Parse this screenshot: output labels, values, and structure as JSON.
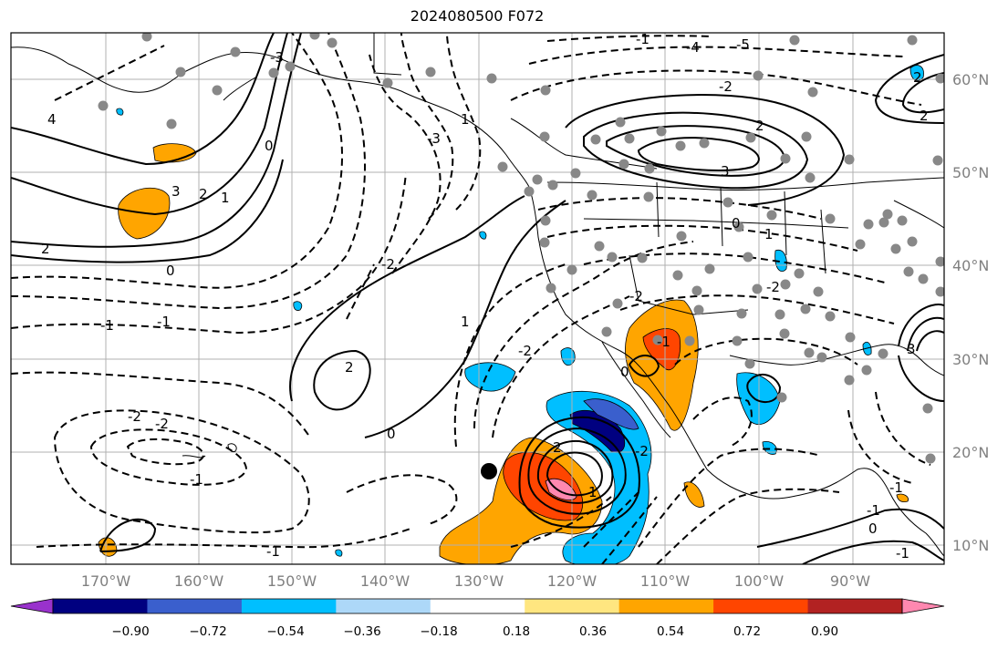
{
  "title": "2024080500 F072",
  "lon_labels": [
    "170°W",
    "160°W",
    "150°W",
    "140°W",
    "130°W",
    "120°W",
    "110°W",
    "100°W",
    "90°W"
  ],
  "lat_labels": [
    "60°N",
    "50°N",
    "40°N",
    "30°N",
    "20°N",
    "10°N"
  ],
  "colorbar": {
    "colors": [
      "#9932cc",
      "#000080",
      "#3a5fcd",
      "#00bfff",
      "#add8f8",
      "#ffffff",
      "#ffe680",
      "#ffa500",
      "#ff4500",
      "#b22222",
      "#ff88b0"
    ],
    "ticks": [
      "−0.90",
      "−0.72",
      "−0.54",
      "−0.36",
      "−0.18",
      "0.18",
      "0.36",
      "0.54",
      "0.72",
      "0.90"
    ]
  },
  "contour_labels": [
    "4",
    "3",
    "2",
    "1",
    "0",
    "-1",
    "-2",
    "-3",
    "-4",
    "-5",
    "2",
    "1",
    "0",
    "-1",
    "-2",
    "2",
    "-1",
    "-2",
    "0",
    "-2",
    "-1",
    "-2",
    "3",
    "2",
    "1",
    "-2",
    "2",
    "1",
    "0",
    "-1",
    "-2",
    "-1",
    "2",
    "3",
    "2",
    "1",
    "0",
    "-1",
    "-2",
    "-1",
    "0",
    "-3",
    "-1"
  ]
}
